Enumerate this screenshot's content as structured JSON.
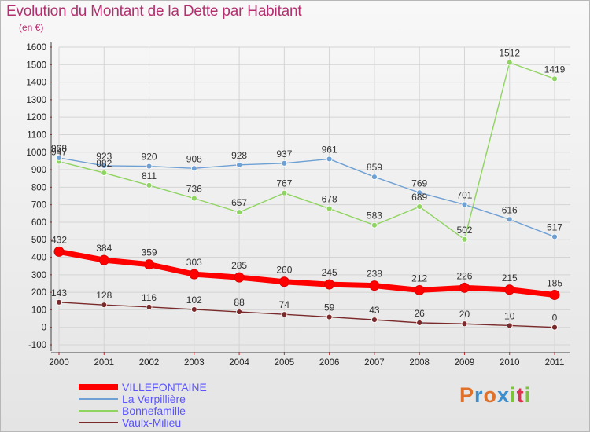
{
  "title": "Evolution du Montant de la Dette par Habitant",
  "subtitle": "(en €)",
  "logo_text": "Proxiti",
  "colors": {
    "title": "#b3306f",
    "logo_letters": [
      "#e0712b",
      "#3b8fd1",
      "#e0712b",
      "#3b8fd1",
      "#7cc23a",
      "#e03050",
      "#7cc23a"
    ]
  },
  "chart_data": {
    "type": "line",
    "title": "Evolution du Montant de la Dette par Habitant",
    "subtitle": "(en €)",
    "x": [
      "2000",
      "2001",
      "2002",
      "2003",
      "2004",
      "2005",
      "2006",
      "2007",
      "2008",
      "2009",
      "2010",
      "2011"
    ],
    "ylim": [
      -100,
      1600
    ],
    "yticks": [
      "-100",
      "0",
      "100",
      "200",
      "300",
      "400",
      "500",
      "600",
      "700",
      "800",
      "900",
      "1000",
      "1100",
      "1200",
      "1300",
      "1400",
      "1500",
      "1600"
    ],
    "grid": true,
    "legend_position": "bottom-left",
    "series": [
      {
        "name": "VILLEFONTAINE",
        "color": "#ff0000",
        "label_color": "#5a55ff",
        "values": [
          432,
          384,
          359,
          303,
          285,
          260,
          245,
          238,
          212,
          226,
          215,
          185
        ],
        "labels": [
          "432",
          "384",
          "359",
          "303",
          "285",
          "260",
          "245",
          "238",
          "212",
          "226",
          "215",
          "185"
        ]
      },
      {
        "name": "La Verpillière",
        "color": "#6fa0d3",
        "label_color": "#5a55ff",
        "values": [
          968,
          923,
          920,
          908,
          928,
          937,
          961,
          859,
          769,
          701,
          616,
          517
        ],
        "labels": [
          "968",
          "923",
          "920",
          "908",
          "928",
          "937",
          "961",
          "859",
          "769",
          "701",
          "616",
          "517"
        ]
      },
      {
        "name": "Bonnefamille",
        "color": "#8fd460",
        "label_color": "#5a55ff",
        "values": [
          947,
          882,
          811,
          736,
          657,
          767,
          678,
          583,
          689,
          502,
          1512,
          1419
        ],
        "labels": [
          "947",
          "882",
          "811",
          "736",
          "657",
          "767",
          "678",
          "583",
          "689",
          "502",
          "1512",
          "1419"
        ]
      },
      {
        "name": "Vaulx-Milieu",
        "color": "#7a2a2a",
        "label_color": "#5a55ff",
        "values": [
          143,
          128,
          116,
          102,
          88,
          74,
          59,
          43,
          26,
          20,
          10,
          0
        ],
        "labels": [
          "143",
          "128",
          "116",
          "102",
          "88",
          "74",
          "59",
          "43",
          "26",
          "20",
          "10",
          "0"
        ]
      }
    ]
  }
}
